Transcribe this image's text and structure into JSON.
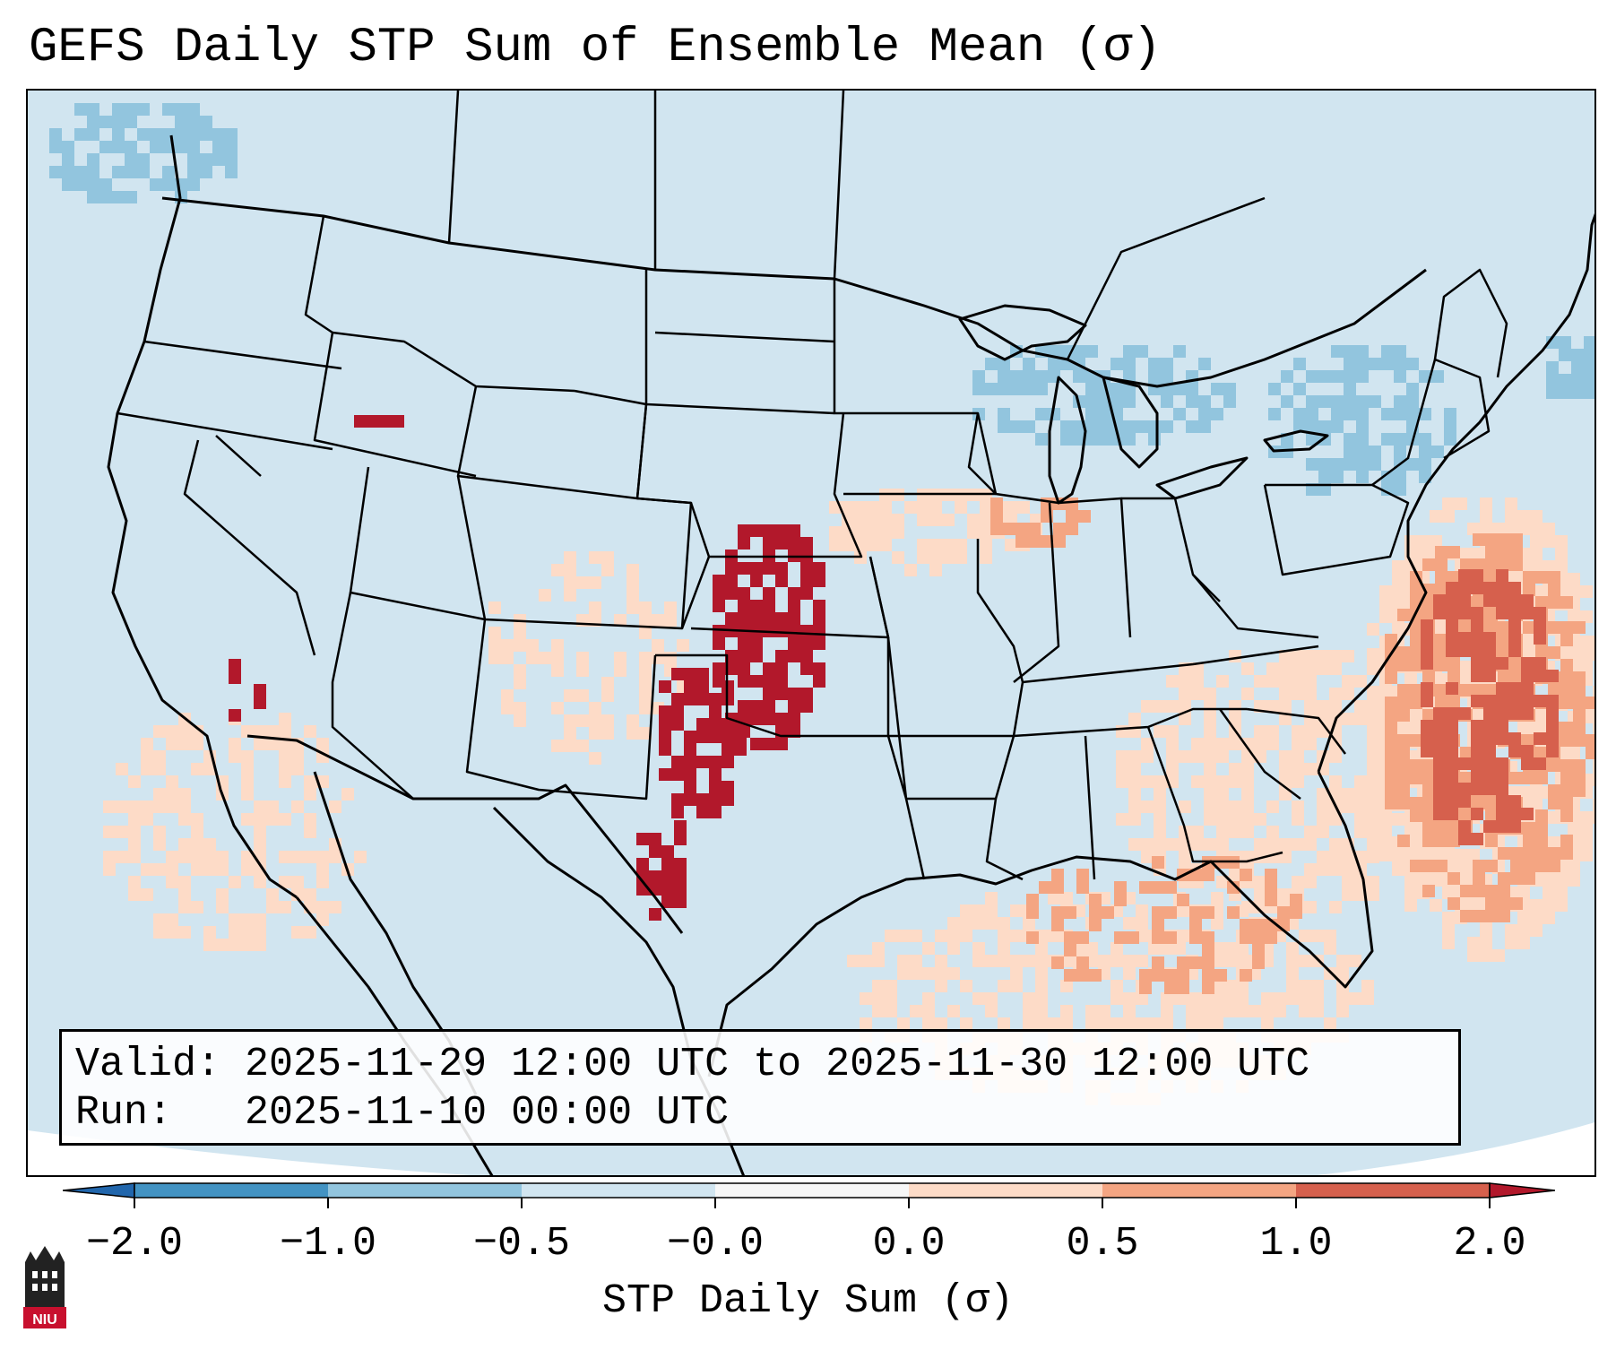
{
  "title": "GEFS Daily STP Sum of Ensemble Mean (σ)",
  "info_box": {
    "valid_line": "Valid: 2025-11-29 12:00 UTC to 2025-11-30 12:00 UTC",
    "run_line": "Run:   2025-11-10 00:00 UTC"
  },
  "colorbar": {
    "label": "STP Daily Sum (σ)",
    "tick_labels": [
      "−2.0",
      "−1.0",
      "−0.5",
      "−0.0",
      "0.0",
      "0.5",
      "1.0",
      "2.0"
    ],
    "colors": {
      "below_min": "#2166ac",
      "bin_neg2_neg1": "#4393c3",
      "bin_neg1_neg05": "#92c5de",
      "bin_neg05_0": "#d1e5f0",
      "bin_0": "#f7f7f7",
      "bin_0_05": "#fddbc7",
      "bin_05_1": "#f4a582",
      "bin_1_2": "#d6604d",
      "above_max": "#b2182b"
    }
  },
  "map": {
    "background_color": "#d1e5f0",
    "line_color": "#000000",
    "features": [
      "state-borders",
      "coastlines",
      "great-lakes",
      "country-borders"
    ]
  },
  "logo": {
    "text": "NIU"
  }
}
